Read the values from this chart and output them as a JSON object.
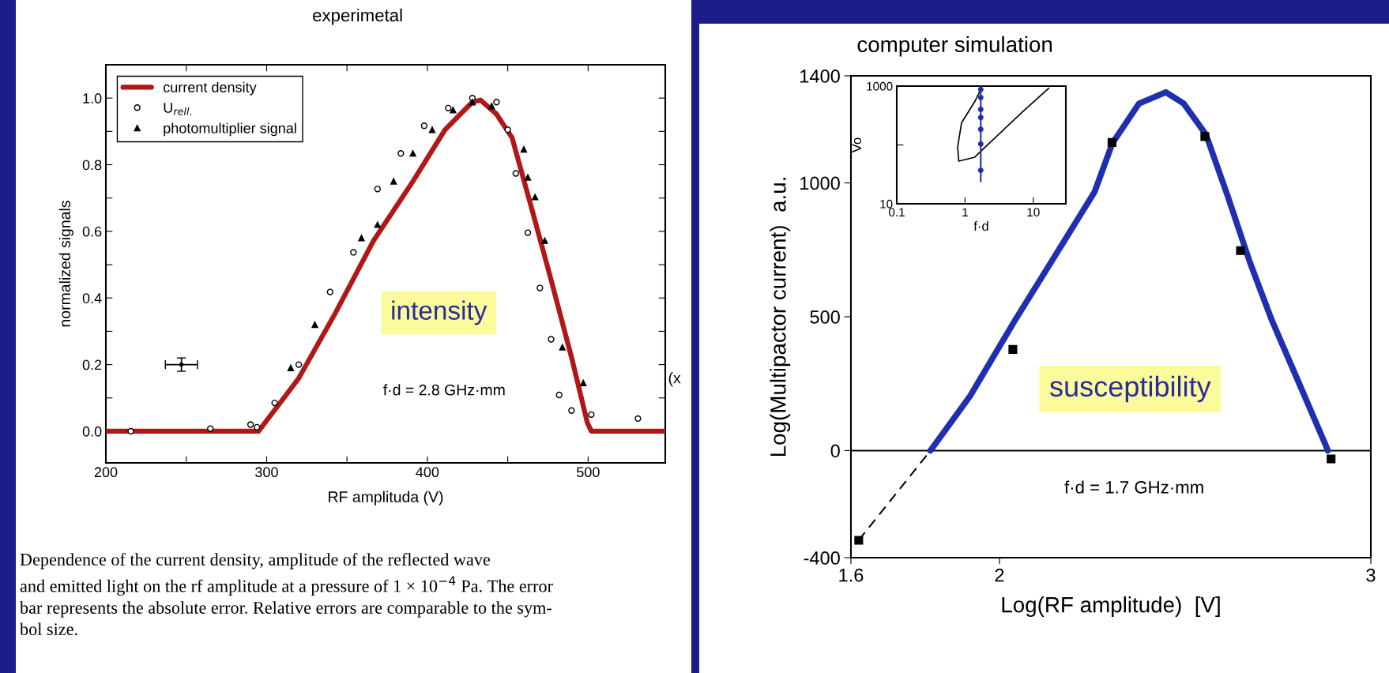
{
  "chart_data": [
    {
      "type": "line",
      "title": "experimetal",
      "xlabel": "RF amplituda (V)",
      "ylabel": "normalized signals",
      "xlim": [
        200,
        548
      ],
      "xticks": [
        200,
        {
          "value": 250,
          "label": null
        },
        300,
        {
          "value": 350,
          "label": null
        },
        400,
        {
          "value": 450,
          "label": null
        },
        500
      ],
      "ylim": [
        -0.095,
        1.1
      ],
      "yticks": [
        {
          "value": 0,
          "label": "0.0"
        },
        {
          "value": 0.1,
          "label": null
        },
        {
          "value": 0.2,
          "label": "0.2"
        },
        {
          "value": 0.3,
          "label": null
        },
        {
          "value": 0.4,
          "label": "0.4"
        },
        {
          "value": 0.5,
          "label": null
        },
        {
          "value": 0.6,
          "label": "0.6"
        },
        {
          "value": 0.7,
          "label": null
        },
        {
          "value": 0.8,
          "label": "0.8"
        },
        {
          "value": 0.9,
          "label": null
        },
        {
          "value": 1.0,
          "label": "1.0"
        }
      ],
      "legend": "top left",
      "grid": false,
      "series": [
        {
          "name": "current density",
          "color": "#b01818",
          "line_style": "solid",
          "marker": "none",
          "x": [
            201,
            295,
            319.7,
            341.9,
            366.5,
            391,
            411,
            428,
            433,
            443,
            452.7,
            465,
            477,
            490,
            499.5,
            502,
            547.5
          ],
          "values": [
            0,
            0,
            0.157,
            0.347,
            0.572,
            0.75,
            0.905,
            0.988,
            0.994,
            0.952,
            0.881,
            0.667,
            0.454,
            0.216,
            0.026,
            0,
            0
          ]
        },
        {
          "name": "U$_{rell.}$",
          "type": "scatter",
          "color": "#000000",
          "marker": "circle",
          "x": [
            215.5,
            265,
            290,
            294,
            305,
            320,
            339.5,
            354,
            369,
            383.5,
            398,
            413,
            428,
            443,
            450,
            455,
            462.5,
            470,
            477,
            482,
            489.7,
            502,
            531
          ],
          "values": [
            0,
            0.008,
            0.02,
            0.012,
            0.085,
            0.2,
            0.418,
            0.537,
            0.727,
            0.834,
            0.917,
            0.97,
            1.0,
            0.988,
            0.905,
            0.774,
            0.596,
            0.43,
            0.276,
            0.109,
            0.062,
            0.05,
            0.038
          ]
        },
        {
          "name": "photomultiplier signal",
          "type": "scatter",
          "color": "#000000",
          "marker": "triangle",
          "x": [
            315,
            330,
            359,
            369,
            379,
            391,
            403,
            416,
            428,
            440,
            460,
            462.5,
            467,
            473,
            484,
            497
          ],
          "values": [
            0.19,
            0.32,
            0.58,
            0.62,
            0.75,
            0.834,
            0.905,
            0.964,
            0.988,
            0.976,
            0.846,
            0.762,
            0.703,
            0.572,
            0.252,
            0.145
          ]
        },
        {
          "type": "scatter",
          "color": "#000000",
          "marker": "circle",
          "x": [
            247
          ],
          "values": [
            0.2
          ],
          "errors": [
            0.02
          ],
          "xerrors": [
            10
          ]
        }
      ],
      "annotations": [
        "f·d = 2.8 GHz·mm",
        "intensity",
        "(x",
        "Dependence of the current density, amplitude of the reflected wave\nand emitted light on the rf amplitude at a pressure of 1 × 10$^{−4}$ Pa. The error\nbar represents the absolute error. Relative errors are comparable to the sym-\nbol size."
      ]
    },
    {
      "type": "line",
      "title": "computer simulation",
      "xlabel": "Log(RF amplitude)  [V]",
      "ylabel": "Log(Multipactor current)  a.u.",
      "xlim": [
        1.6,
        3
      ],
      "xticks": [
        1.6,
        2,
        3
      ],
      "ylim": [
        -400,
        1400
      ],
      "yticks": [
        -400,
        0,
        500,
        1000,
        1400
      ],
      "grid": false,
      "ref_lines": [
        {
          "axis": "y",
          "value": 0,
          "color": "#000000"
        }
      ],
      "series": [
        {
          "color": "#1f2fb0",
          "line_style": "solid",
          "marker": "none",
          "x": [
            1.814,
            1.921,
            2.041,
            2.16,
            2.256,
            2.304,
            2.376,
            2.448,
            2.496,
            2.556,
            2.615,
            2.675,
            2.734,
            2.806,
            2.878,
            2.884
          ],
          "values": [
            0,
            204,
            485,
            751,
            966,
            1148,
            1297,
            1339,
            1297,
            1181,
            949,
            701,
            485,
            254,
            22,
            0
          ]
        },
        {
          "type": "line",
          "color": "#000000",
          "line_style": "dashed",
          "marker": "none",
          "x": [
            1.621,
            1.814
          ],
          "values": [
            -335,
            0
          ]
        },
        {
          "type": "scatter",
          "color": "#000000",
          "marker": "square",
          "x": [
            1.621,
            2.036,
            2.303,
            2.553,
            2.649,
            2.893
          ],
          "values": [
            -335,
            378,
            1151,
            1173,
            747,
            -31
          ]
        }
      ],
      "annotations": [
        "f·d = 1.7 GHz·mm",
        "susceptibility"
      ]
    },
    {
      "type": "line",
      "xlabel": "f·d",
      "ylabel": "Vo",
      "log": "xy",
      "xlim": [
        0.1,
        30
      ],
      "xticks": [
        0.1,
        1,
        10
      ],
      "ylim": [
        10,
        1000
      ],
      "yticks": [
        10,
        {
          "value": 100,
          "label": null
        },
        1000
      ],
      "grid": false,
      "series": [
        {
          "color": "#000000",
          "line_style": "solid",
          "marker": "none",
          "x": [
            16.9,
            6.9,
            1.99,
            1.39,
            0.81,
            0.78,
            0.89,
            1.39,
            1.66
          ],
          "values": [
            922,
            361,
            93,
            62,
            53,
            93,
            238,
            547,
            830
          ]
        },
        {
          "type": "line",
          "color": "#1f2fb0",
          "line_style": "solid",
          "marker": "none",
          "x": [
            1.7,
            1.7
          ],
          "values": [
            977,
            24
          ]
        },
        {
          "type": "scatter",
          "color": "#1f2fb0",
          "marker": "circle",
          "x": [
            1.7,
            1.7,
            1.7,
            1.7,
            1.7,
            1.7,
            1.7
          ],
          "values": [
            875,
            640,
            401,
            293,
            184,
            104,
            37
          ]
        }
      ]
    }
  ]
}
